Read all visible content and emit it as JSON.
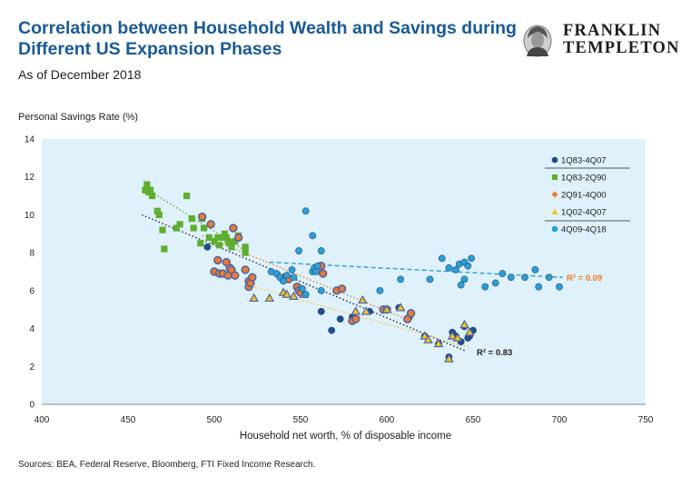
{
  "title": "Correlation between Household Wealth and Savings during Different US Expansion Phases",
  "subtitle": "As of December 2018",
  "source": "Sources: BEA, Federal Reserve, Bloomberg, FTI Fixed Income Research.",
  "logo": {
    "line1": "FRANKLIN",
    "line2": "TEMPLETON"
  },
  "colors": {
    "title": "#1a5a96",
    "plot_bg": "#dff1fb",
    "s1": "#1f4e8c",
    "s2": "#5fae2e",
    "s3": "#f07a2c",
    "s4": "#f5c21b",
    "s5": "#2b9fd6"
  },
  "chart_data": {
    "type": "scatter",
    "title": "Correlation between Household Wealth and Savings during Different US Expansion Phases",
    "xlabel": "Household net worth, % of disposable income",
    "ylabel": "Personal Savings Rate (%)",
    "xlim": [
      400,
      750
    ],
    "ylim": [
      0,
      14
    ],
    "x_ticks": [
      "400",
      "450",
      "500",
      "550",
      "600",
      "650",
      "700",
      "750"
    ],
    "y_ticks": [
      "0",
      "2",
      "4",
      "6",
      "8",
      "10",
      "12",
      "14"
    ],
    "legend_position": "top-right",
    "series": [
      {
        "name": "1Q83-4Q07",
        "color": "#1f4e8c",
        "marker": "circle",
        "points": [
          [
            496,
            8.3
          ],
          [
            562,
            4.9
          ],
          [
            568,
            3.9
          ],
          [
            573,
            4.5
          ],
          [
            580,
            4.6
          ],
          [
            590,
            4.9
          ],
          [
            600,
            5.0
          ],
          [
            607,
            5.1
          ],
          [
            613,
            4.6
          ],
          [
            622,
            3.6
          ],
          [
            630,
            3.2
          ],
          [
            636,
            2.5
          ],
          [
            638,
            3.8
          ],
          [
            640,
            3.6
          ],
          [
            643,
            3.3
          ],
          [
            645,
            4.1
          ],
          [
            648,
            3.6
          ],
          [
            650,
            3.9
          ],
          [
            647,
            3.5
          ]
        ]
      },
      {
        "name": "1Q83-2Q90",
        "color": "#5fae2e",
        "marker": "square",
        "points": [
          [
            460,
            11.3
          ],
          [
            461,
            11.6
          ],
          [
            462,
            11.2
          ],
          [
            463,
            11.3
          ],
          [
            464,
            11.0
          ],
          [
            467,
            10.2
          ],
          [
            468,
            10.0
          ],
          [
            470,
            9.2
          ],
          [
            471,
            8.2
          ],
          [
            478,
            9.3
          ],
          [
            480,
            9.5
          ],
          [
            484,
            11.0
          ],
          [
            487,
            9.8
          ],
          [
            488,
            9.3
          ],
          [
            492,
            8.5
          ],
          [
            493,
            9.8
          ],
          [
            494,
            9.3
          ],
          [
            497,
            8.8
          ],
          [
            500,
            8.6
          ],
          [
            502,
            8.8
          ],
          [
            503,
            8.4
          ],
          [
            505,
            8.8
          ],
          [
            506,
            9.0
          ],
          [
            507,
            8.8
          ],
          [
            508,
            8.6
          ],
          [
            509,
            8.5
          ],
          [
            510,
            8.3
          ],
          [
            512,
            8.6
          ],
          [
            514,
            8.9
          ],
          [
            518,
            8.0
          ],
          [
            518,
            8.3
          ]
        ]
      },
      {
        "name": "2Q91-4Q00",
        "color": "#f07a2c",
        "marker": "diamond",
        "points": [
          [
            493,
            9.9
          ],
          [
            498,
            9.5
          ],
          [
            500,
            7.0
          ],
          [
            502,
            7.6
          ],
          [
            503,
            6.9
          ],
          [
            505,
            6.9
          ],
          [
            507,
            7.5
          ],
          [
            508,
            6.8
          ],
          [
            509,
            7.2
          ],
          [
            510,
            7.1
          ],
          [
            511,
            9.3
          ],
          [
            512,
            6.8
          ],
          [
            514,
            8.8
          ],
          [
            518,
            7.1
          ],
          [
            520,
            6.5
          ],
          [
            520,
            6.2
          ],
          [
            521,
            6.4
          ],
          [
            522,
            6.7
          ],
          [
            540,
            6.6
          ],
          [
            543,
            6.6
          ],
          [
            548,
            6.2
          ],
          [
            549,
            6.0
          ],
          [
            550,
            5.9
          ],
          [
            562,
            7.3
          ],
          [
            563,
            6.9
          ],
          [
            571,
            6.0
          ],
          [
            574,
            6.1
          ],
          [
            580,
            4.4
          ],
          [
            582,
            4.5
          ],
          [
            598,
            5.0
          ],
          [
            600,
            5.0
          ],
          [
            612,
            4.5
          ],
          [
            614,
            4.8
          ]
        ]
      },
      {
        "name": "1Q02-4Q07",
        "color": "#f5c21b",
        "marker": "triangle",
        "points": [
          [
            523,
            5.6
          ],
          [
            532,
            5.6
          ],
          [
            540,
            5.9
          ],
          [
            542,
            5.8
          ],
          [
            546,
            5.7
          ],
          [
            552,
            5.8
          ],
          [
            582,
            4.9
          ],
          [
            586,
            5.5
          ],
          [
            588,
            4.9
          ],
          [
            600,
            5.0
          ],
          [
            608,
            5.1
          ],
          [
            622,
            3.6
          ],
          [
            624,
            3.4
          ],
          [
            630,
            3.2
          ],
          [
            636,
            2.4
          ],
          [
            638,
            3.6
          ],
          [
            641,
            3.5
          ],
          [
            645,
            4.2
          ],
          [
            648,
            3.8
          ]
        ]
      },
      {
        "name": "4Q09-4Q18",
        "color": "#2b9fd6",
        "marker": "circle",
        "points": [
          [
            533,
            7.0
          ],
          [
            536,
            6.9
          ],
          [
            538,
            6.7
          ],
          [
            540,
            6.5
          ],
          [
            542,
            6.8
          ],
          [
            545,
            7.1
          ],
          [
            546,
            6.7
          ],
          [
            549,
            8.1
          ],
          [
            553,
            10.2
          ],
          [
            557,
            8.9
          ],
          [
            557,
            7.0
          ],
          [
            558,
            7.2
          ],
          [
            559,
            7.0
          ],
          [
            560,
            7.3
          ],
          [
            562,
            8.1
          ],
          [
            562,
            6.0
          ],
          [
            551,
            6.1
          ],
          [
            553,
            5.8
          ],
          [
            596,
            6.0
          ],
          [
            608,
            6.6
          ],
          [
            625,
            6.6
          ],
          [
            632,
            7.7
          ],
          [
            636,
            7.2
          ],
          [
            640,
            7.1
          ],
          [
            642,
            7.4
          ],
          [
            645,
            7.5
          ],
          [
            647,
            7.3
          ],
          [
            649,
            7.7
          ],
          [
            643,
            6.3
          ],
          [
            645,
            6.6
          ],
          [
            657,
            6.2
          ],
          [
            663,
            6.4
          ],
          [
            667,
            6.9
          ],
          [
            672,
            6.7
          ],
          [
            680,
            6.7
          ],
          [
            686,
            7.1
          ],
          [
            688,
            6.2
          ],
          [
            694,
            6.7
          ],
          [
            700,
            6.2
          ]
        ]
      }
    ],
    "trendlines": [
      {
        "name": "1983-2007 trend",
        "r2_label": "R² = 0.83",
        "color": "#1f2a44",
        "from": [
          458,
          10.0
        ],
        "to": [
          646,
          2.8
        ]
      },
      {
        "name": "2009-2018 trend",
        "r2_label": "R² = 0.09",
        "color": "#2b9fd6",
        "r2_color": "#f07a2c",
        "from": [
          532,
          7.5
        ],
        "to": [
          702,
          6.7
        ]
      },
      {
        "name": "1983-1990 trend",
        "r2_label": "",
        "color": "#5fae2e",
        "from": [
          460,
          11.4
        ],
        "to": [
          520,
          8.0
        ]
      },
      {
        "name": "1991-2000 trend",
        "r2_label": "",
        "color": "#f07a2c",
        "from": [
          493,
          8.9
        ],
        "to": [
          614,
          4.4
        ]
      },
      {
        "name": "2002-2007 trend",
        "r2_label": "",
        "color": "#f5c21b",
        "from": [
          523,
          6.2
        ],
        "to": [
          648,
          3.0
        ]
      }
    ]
  }
}
